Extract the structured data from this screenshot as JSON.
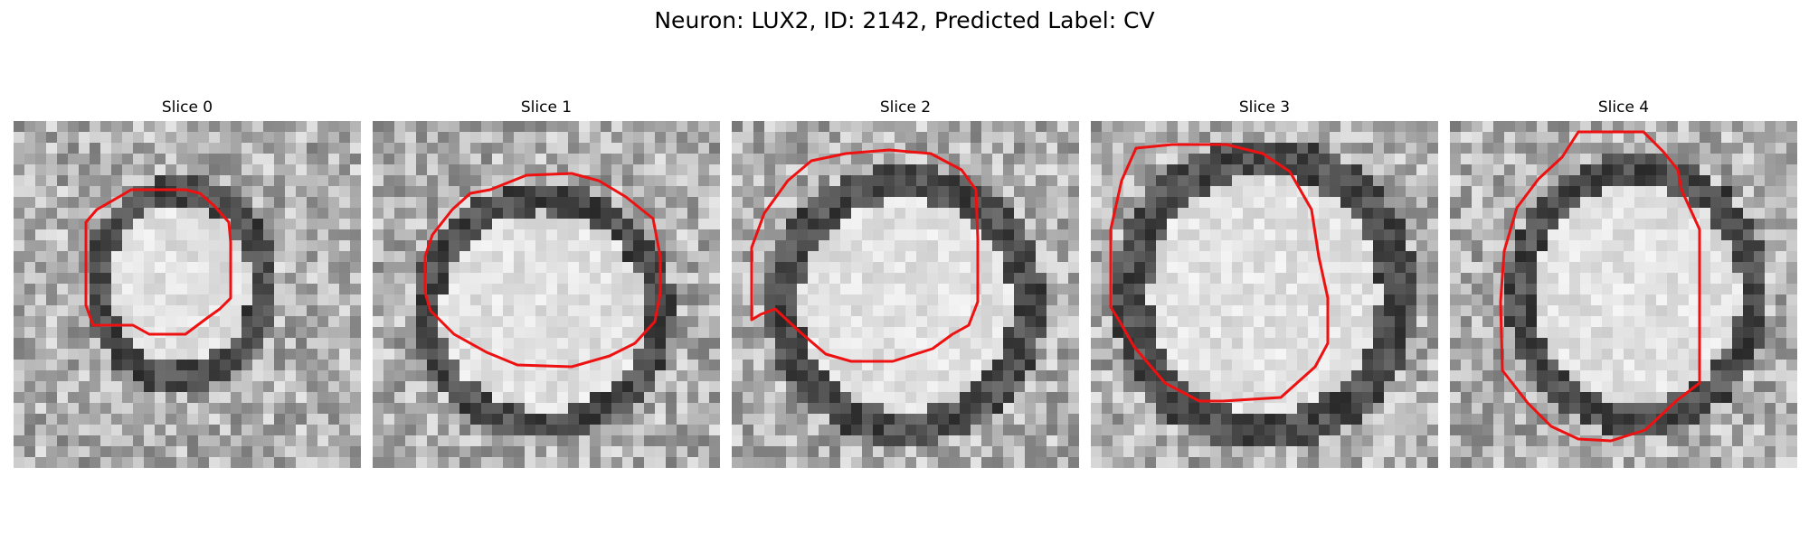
{
  "figure": {
    "title": "Neuron: LUX2, ID: 2142, Predicted Label: CV"
  },
  "panels": [
    {
      "title": "Slice 0"
    },
    {
      "title": "Slice 1"
    },
    {
      "title": "Slice 2"
    },
    {
      "title": "Slice 3"
    },
    {
      "title": "Slice 4"
    }
  ],
  "colors": {
    "contour": "#ee1111",
    "image_colormap": "grayscale"
  }
}
